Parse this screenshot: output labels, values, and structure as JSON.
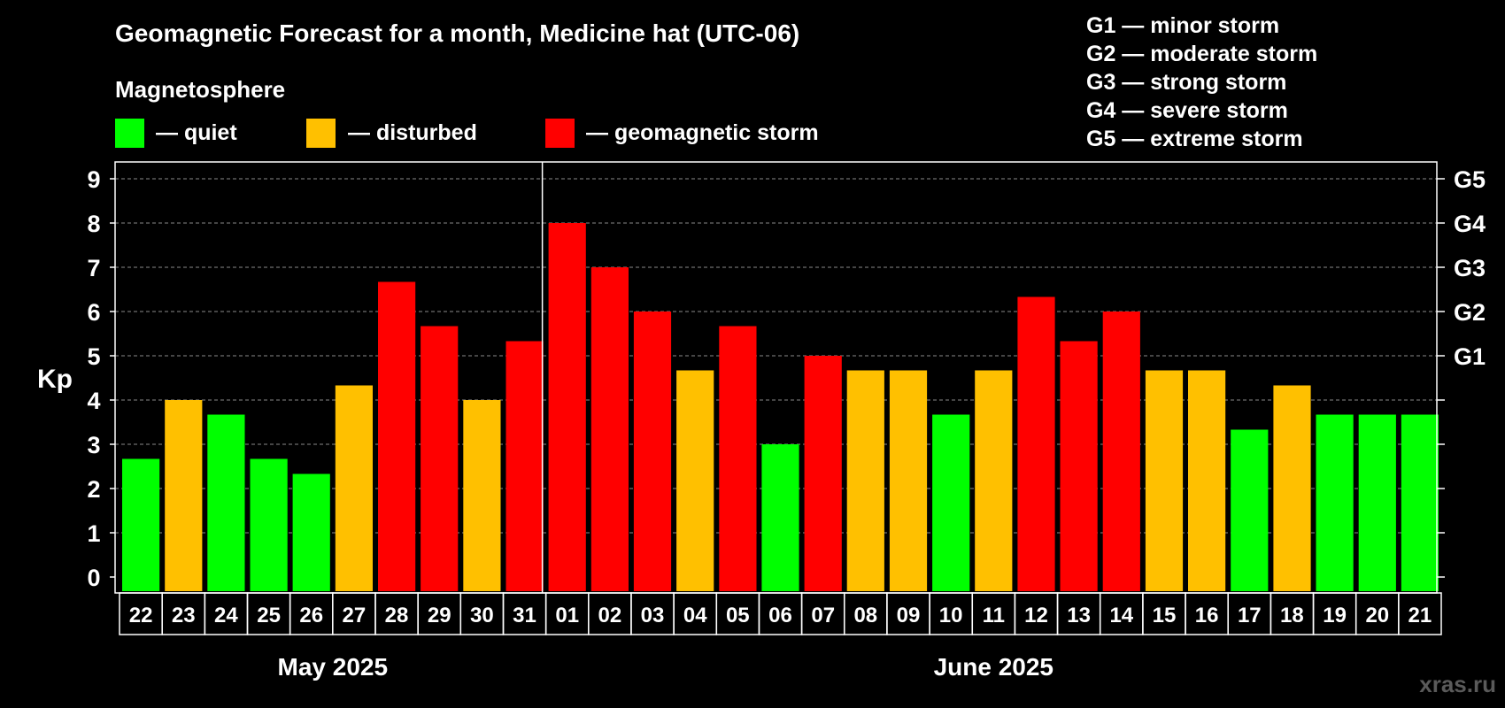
{
  "chart_data": {
    "type": "bar",
    "title": "Geomagnetic Forecast for a month, Medicine hat (UTC-06)",
    "ylabel": "Kp",
    "ylim": [
      0,
      9
    ],
    "yticks": [
      "0",
      "1",
      "2",
      "3",
      "4",
      "5",
      "6",
      "7",
      "8",
      "9"
    ],
    "right_ticks": [
      {
        "value": 5,
        "label": "G1"
      },
      {
        "value": 6,
        "label": "G2"
      },
      {
        "value": 7,
        "label": "G3"
      },
      {
        "value": 8,
        "label": "G4"
      },
      {
        "value": 9,
        "label": "G5"
      }
    ],
    "legend_title": "Magnetosphere",
    "legend": [
      {
        "key": "quiet",
        "label": "— quiet",
        "color": "#00ff00"
      },
      {
        "key": "disturbed",
        "label": "— disturbed",
        "color": "#ffc000"
      },
      {
        "key": "storm",
        "label": "— geomagnetic storm",
        "color": "#ff0000"
      }
    ],
    "scale_legend": [
      "G1 — minor storm",
      "G2 — moderate storm",
      "G3 — strong storm",
      "G4 — severe storm",
      "G5 — extreme storm"
    ],
    "months": [
      {
        "label": "May 2025",
        "count": 10
      },
      {
        "label": "June 2025",
        "count": 21
      }
    ],
    "categories": [
      "22",
      "23",
      "24",
      "25",
      "26",
      "27",
      "28",
      "29",
      "30",
      "31",
      "01",
      "02",
      "03",
      "04",
      "05",
      "06",
      "07",
      "08",
      "09",
      "10",
      "11",
      "12",
      "13",
      "14",
      "15",
      "16",
      "17",
      "18",
      "19",
      "20",
      "21"
    ],
    "values": [
      2.67,
      4,
      3.67,
      2.67,
      2.33,
      4.33,
      6.67,
      5.67,
      4,
      5.33,
      8,
      7,
      6,
      4.67,
      5.67,
      3,
      5,
      4.67,
      4.67,
      3.67,
      4.67,
      6.33,
      5.33,
      6,
      4.67,
      4.67,
      3.33,
      4.33,
      3.67,
      3.67,
      3.67
    ],
    "status": [
      "quiet",
      "disturbed",
      "quiet",
      "quiet",
      "quiet",
      "disturbed",
      "storm",
      "storm",
      "disturbed",
      "storm",
      "storm",
      "storm",
      "storm",
      "disturbed",
      "storm",
      "quiet",
      "storm",
      "disturbed",
      "disturbed",
      "quiet",
      "disturbed",
      "storm",
      "storm",
      "storm",
      "disturbed",
      "disturbed",
      "quiet",
      "disturbed",
      "quiet",
      "quiet",
      "quiet"
    ]
  },
  "watermark": "xras.ru"
}
